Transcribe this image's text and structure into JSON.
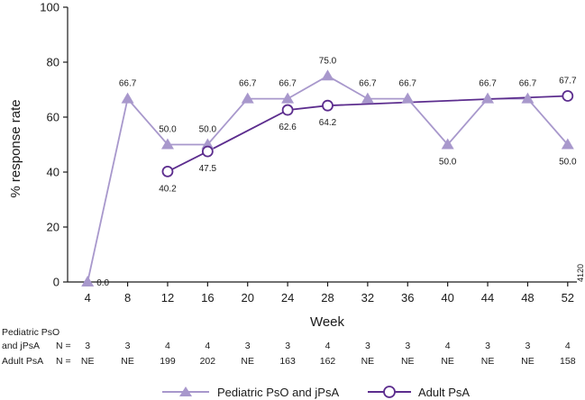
{
  "chart_data": {
    "type": "line",
    "xlabel": "Week",
    "ylabel": "% response rate",
    "ylim": [
      0,
      100
    ],
    "yticks": [
      0,
      20,
      40,
      60,
      80,
      100
    ],
    "x": [
      4,
      8,
      12,
      16,
      20,
      24,
      28,
      32,
      36,
      40,
      44,
      48,
      52
    ],
    "series": [
      {
        "name": "Pediatric PsO and jPsA",
        "color": "#a898cc",
        "marker": "triangle",
        "x": [
          4,
          8,
          12,
          16,
          20,
          24,
          28,
          32,
          36,
          40,
          44,
          48,
          52
        ],
        "values": [
          0.0,
          66.7,
          50.0,
          50.0,
          66.7,
          66.7,
          75.0,
          66.7,
          66.7,
          50.0,
          66.7,
          66.7,
          50.0
        ],
        "labels": [
          "0.0",
          "66.7",
          "50.0",
          "50.0",
          "66.7",
          "66.7",
          "75.0",
          "66.7",
          "66.7",
          "50.0",
          "66.7",
          "66.7",
          "50.0"
        ],
        "label_pos": [
          "right",
          "above",
          "above",
          "above",
          "above",
          "above",
          "above",
          "above",
          "above",
          "below",
          "above",
          "above",
          "below"
        ]
      },
      {
        "name": "Adult PsA",
        "color": "#5c2d8e",
        "marker": "circle-open",
        "x": [
          12,
          16,
          24,
          28,
          52
        ],
        "values": [
          40.2,
          47.5,
          62.6,
          64.2,
          67.7
        ],
        "labels": [
          "40.2",
          "47.5",
          "62.6",
          "64.2",
          "67.7"
        ],
        "label_pos": [
          "below",
          "below",
          "below",
          "below",
          "above"
        ]
      }
    ],
    "n_table": {
      "pediatric_label_line1": "Pediatric PsO",
      "pediatric_label_line2": "and jPsA",
      "n_label": "N =",
      "pediatric_n": [
        "3",
        "3",
        "4",
        "4",
        "3",
        "3",
        "4",
        "3",
        "3",
        "4",
        "3",
        "3",
        "4"
      ],
      "adult_label": "Adult PsA",
      "adult_n": [
        "NE",
        "NE",
        "199",
        "202",
        "NE",
        "163",
        "162",
        "NE",
        "NE",
        "NE",
        "NE",
        "NE",
        "158"
      ]
    },
    "annotation": "4120"
  }
}
